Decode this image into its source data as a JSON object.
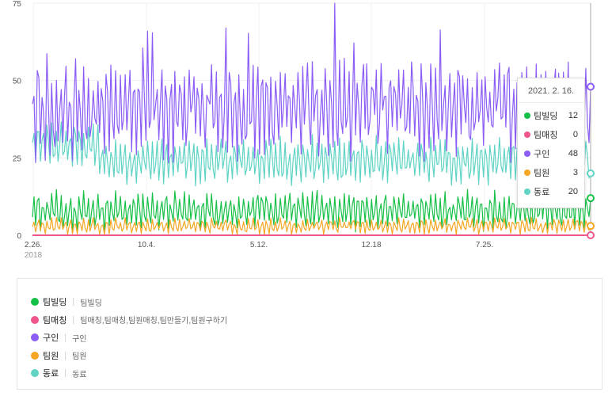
{
  "chart_data": {
    "type": "line",
    "y_axis": {
      "ticks": [
        "0",
        "25",
        "50",
        "75"
      ],
      "range": [
        0,
        75
      ]
    },
    "x_axis": {
      "ticks": [
        "2.26.",
        "10.4.",
        "5.12.",
        "12.18",
        "7.25."
      ],
      "first_tick_year": "2018",
      "range": [
        "2018-02-26",
        "2021-02-16"
      ]
    },
    "grid": true,
    "series": [
      {
        "name": "팀빌딩",
        "color": "#16c047",
        "level": 8,
        "amp": 5,
        "last": 12
      },
      {
        "name": "팀매칭",
        "color": "#f0568e",
        "level": 0,
        "amp": 0,
        "last": 0
      },
      {
        "name": "구인",
        "color": "#8b5cf6",
        "level": 40,
        "amp": 12,
        "last": 48
      },
      {
        "name": "팀원",
        "color": "#f5a623",
        "level": 3,
        "amp": 2,
        "last": 3
      },
      {
        "name": "동료",
        "color": "#5fd3c4",
        "level": 24,
        "amp": 6,
        "last": 20
      }
    ],
    "peak": {
      "series": "구인",
      "date": "2019-10-14",
      "value": 75
    }
  },
  "tooltip": {
    "date": "2021. 2. 16.",
    "rows": [
      {
        "name": "팀빌딩",
        "value": "12",
        "color": "#16c047"
      },
      {
        "name": "팀매칭",
        "value": "0",
        "color": "#f0568e"
      },
      {
        "name": "구인",
        "value": "48",
        "color": "#8b5cf6"
      },
      {
        "name": "팀원",
        "value": "3",
        "color": "#f5a623"
      },
      {
        "name": "동료",
        "value": "20",
        "color": "#5fd3c4"
      }
    ]
  },
  "legend": [
    {
      "name": "팀빌딩",
      "keywords": "팀빌딩",
      "color": "#16c047"
    },
    {
      "name": "팀매칭",
      "keywords": "팀매칭,팀매칭,팀원매칭,팀만들기,팀원구하기",
      "color": "#f0568e"
    },
    {
      "name": "구인",
      "keywords": "구인",
      "color": "#8b5cf6"
    },
    {
      "name": "팀원",
      "keywords": "팀원",
      "color": "#f5a623"
    },
    {
      "name": "동료",
      "keywords": "동료",
      "color": "#5fd3c4"
    }
  ],
  "legend_separator": "|"
}
